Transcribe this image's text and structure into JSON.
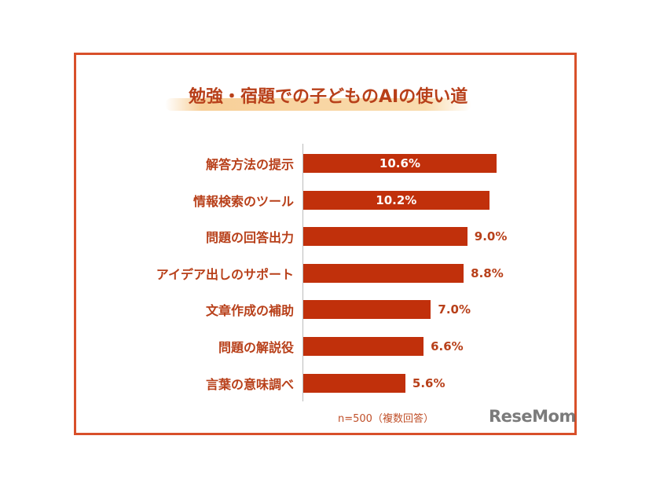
{
  "chart_data": {
    "type": "bar",
    "orientation": "horizontal",
    "title": "勉強・宿題での子どものAIの使い道",
    "categories": [
      "解答方法の提示",
      "情報検索のツール",
      "問題の回答出力",
      "アイデア出しのサポート",
      "文章作成の補助",
      "問題の解説役",
      "言葉の意味調べ"
    ],
    "values": [
      10.6,
      10.2,
      9.0,
      8.8,
      7.0,
      6.6,
      5.6
    ],
    "value_labels": [
      "10.6%",
      "10.2%",
      "9.0%",
      "8.8%",
      "7.0%",
      "6.6%",
      "5.6%"
    ],
    "unit": "%",
    "note": "n=500（複数回答）",
    "grid": false,
    "colors": {
      "bar": "#c1300b",
      "frame": "#d8502a",
      "text": "#b8401a"
    }
  },
  "watermark": "ReseMom"
}
